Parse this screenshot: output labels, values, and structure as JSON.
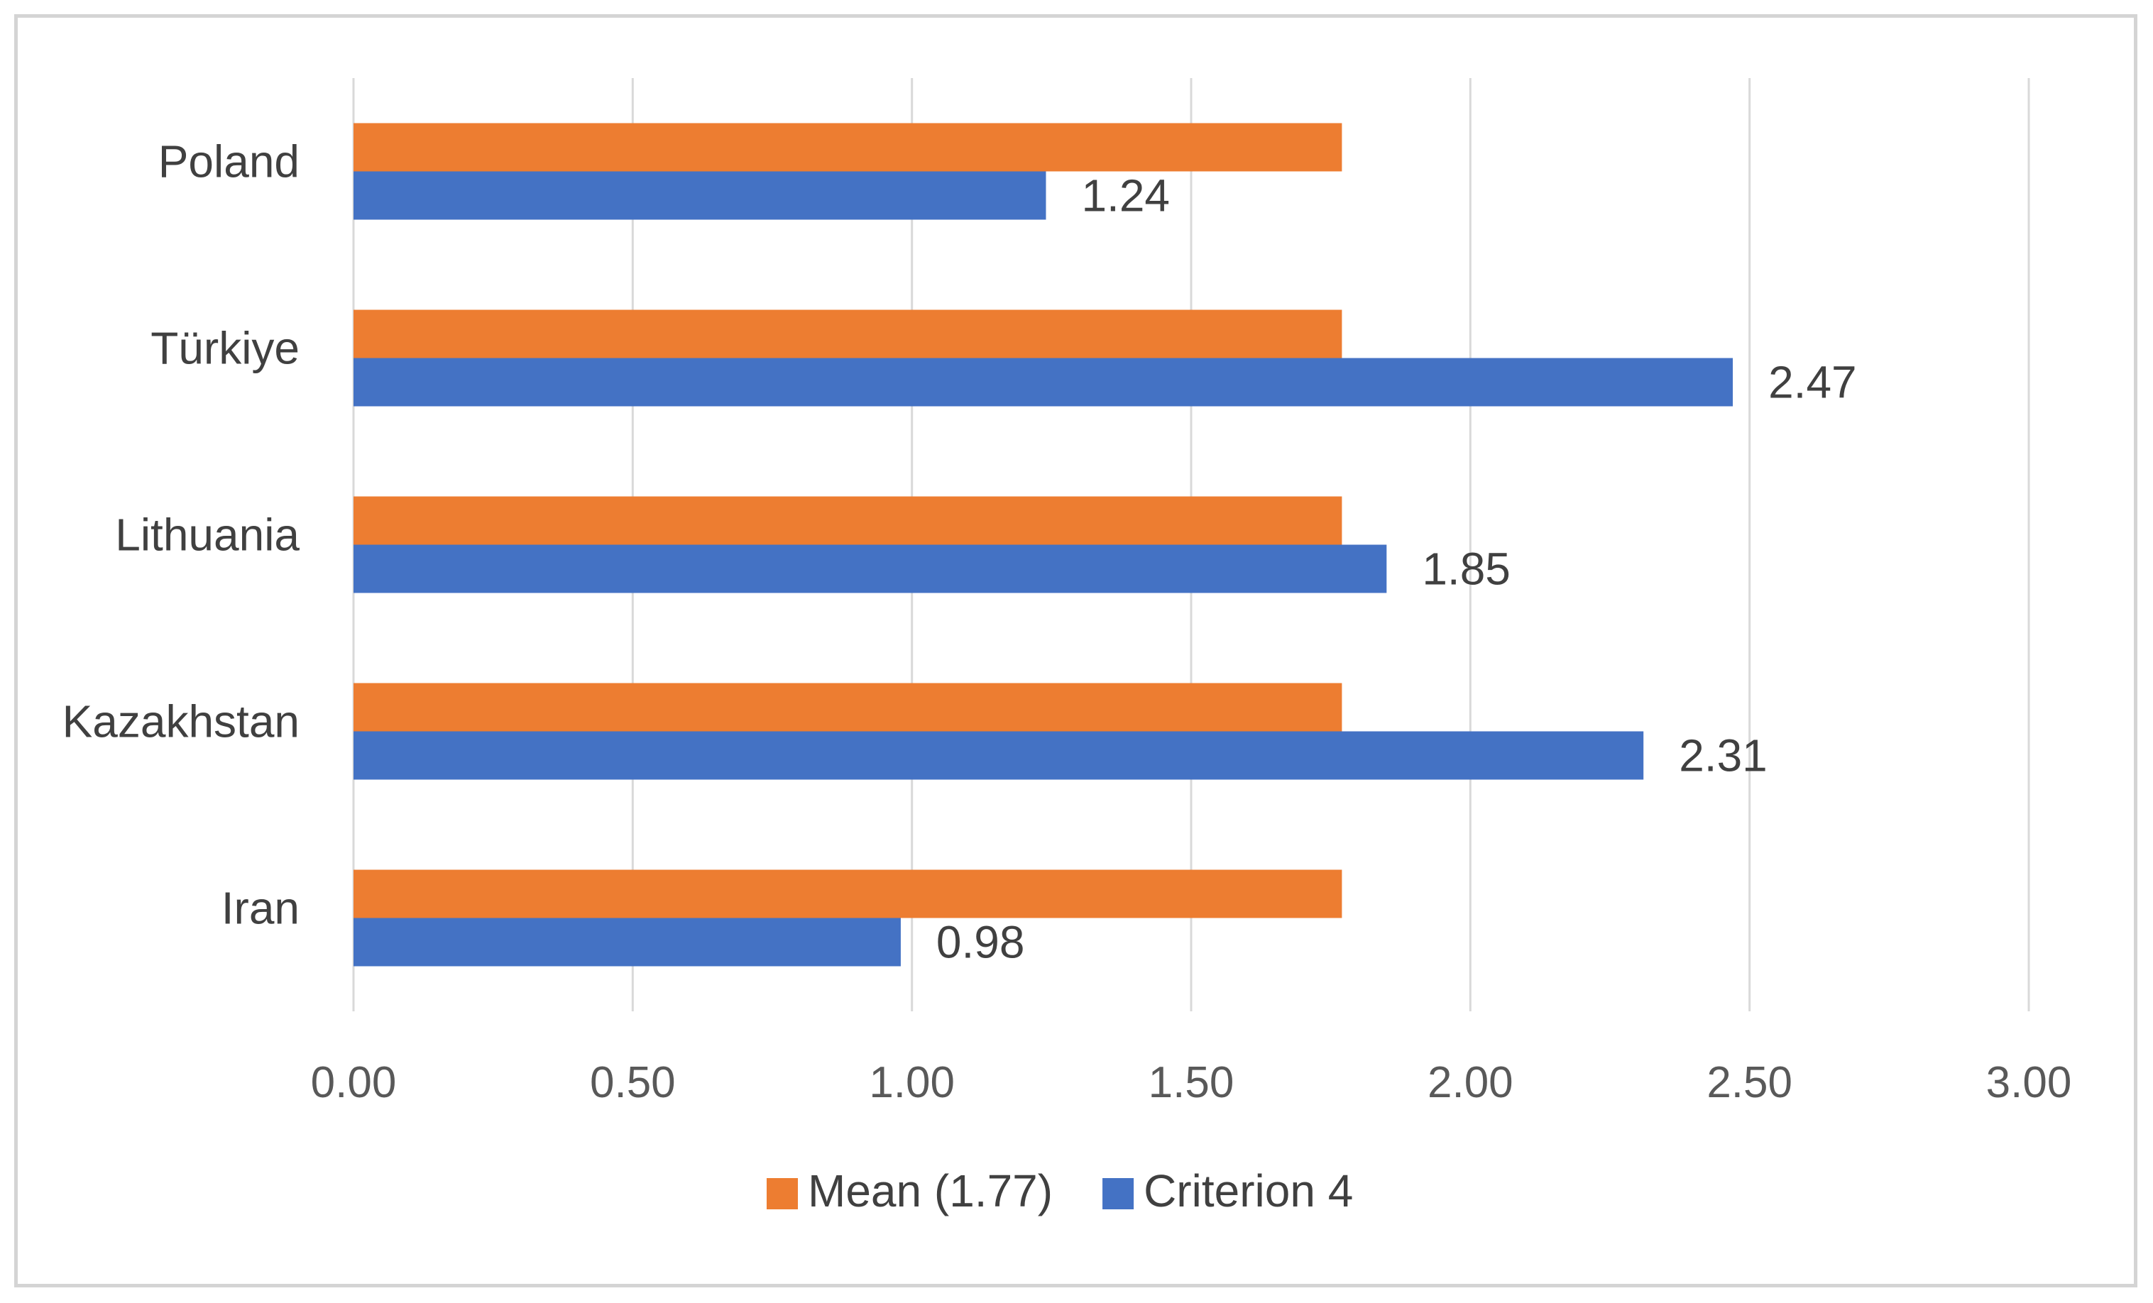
{
  "chart_data": {
    "type": "bar",
    "orientation": "horizontal",
    "title": "",
    "xlabel": "",
    "ylabel": "",
    "categories": [
      "Poland",
      "Türkiye",
      "Lithuania",
      "Kazakhstan",
      "Iran"
    ],
    "series": [
      {
        "name": "Mean (1.77)",
        "color": "#ED7D31",
        "values": [
          1.77,
          1.77,
          1.77,
          1.77,
          1.77
        ],
        "show_labels": false
      },
      {
        "name": "Criterion 4",
        "color": "#4472C4",
        "values": [
          1.24,
          2.47,
          1.85,
          2.31,
          0.98
        ],
        "labels": [
          "1.24",
          "2.47",
          "1.85",
          "2.31",
          "0.98"
        ],
        "show_labels": true
      }
    ],
    "xlim": [
      0,
      3
    ],
    "ticks": [
      0,
      0.5,
      1,
      1.5,
      2,
      2.5,
      3
    ],
    "tick_labels": [
      "0.00",
      "0.50",
      "1.00",
      "1.50",
      "2.00",
      "2.50",
      "3.00"
    ],
    "grid": true,
    "gridline_color": "#d9d9d9",
    "legend_position": "bottom"
  }
}
